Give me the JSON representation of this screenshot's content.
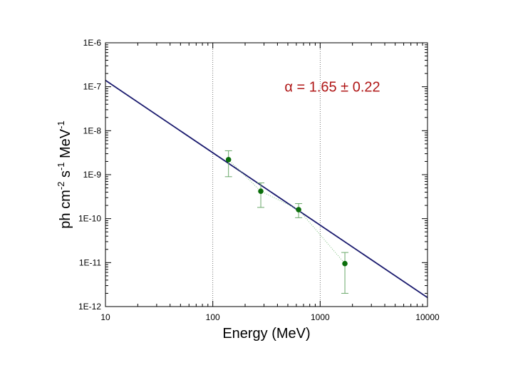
{
  "chart_data": {
    "type": "scatter",
    "title": "",
    "xlabel": "Energy (MeV)",
    "ylabel_parts": [
      "ph cm",
      "-2",
      " s",
      "-1",
      " MeV",
      "-1"
    ],
    "x_scale": "log",
    "y_scale": "log",
    "xlim": [
      10,
      10000
    ],
    "ylim": [
      1e-12,
      1e-06
    ],
    "x_ticks": [
      10,
      100,
      1000,
      10000
    ],
    "x_tick_labels": [
      "10",
      "100",
      "1000",
      "10000"
    ],
    "y_ticks": [
      1e-12,
      1e-11,
      1e-10,
      1e-09,
      1e-08,
      1e-07,
      1e-06
    ],
    "y_tick_labels": [
      "1E-12",
      "1E-11",
      "1E-10",
      "1E-9",
      "1E-8",
      "1E-7",
      "1E-6"
    ],
    "x_dotted_gridlines": [
      100,
      1000
    ],
    "series": [
      {
        "kind": "points_with_errorbars",
        "color": "#0a6e0a",
        "x": [
          140,
          280,
          630,
          1700
        ],
        "y": [
          2.2e-09,
          4.2e-10,
          1.6e-10,
          9.5e-12
        ],
        "y_err_low": [
          9e-10,
          1.8e-10,
          1.05e-10,
          2e-12
        ],
        "y_err_high": [
          3.5e-09,
          6.5e-10,
          2.2e-10,
          1.7e-11
        ],
        "connect_style": "dotted"
      },
      {
        "kind": "power_law_fit",
        "color": "#1a1a6e",
        "x": [
          10,
          10000
        ],
        "y": [
          1.4e-07,
          1.6e-12
        ]
      }
    ],
    "annotations": [
      {
        "text": "α = 1.65 ± 0.22",
        "color": "#b01818",
        "x": 1300,
        "y": 1e-07
      }
    ]
  }
}
